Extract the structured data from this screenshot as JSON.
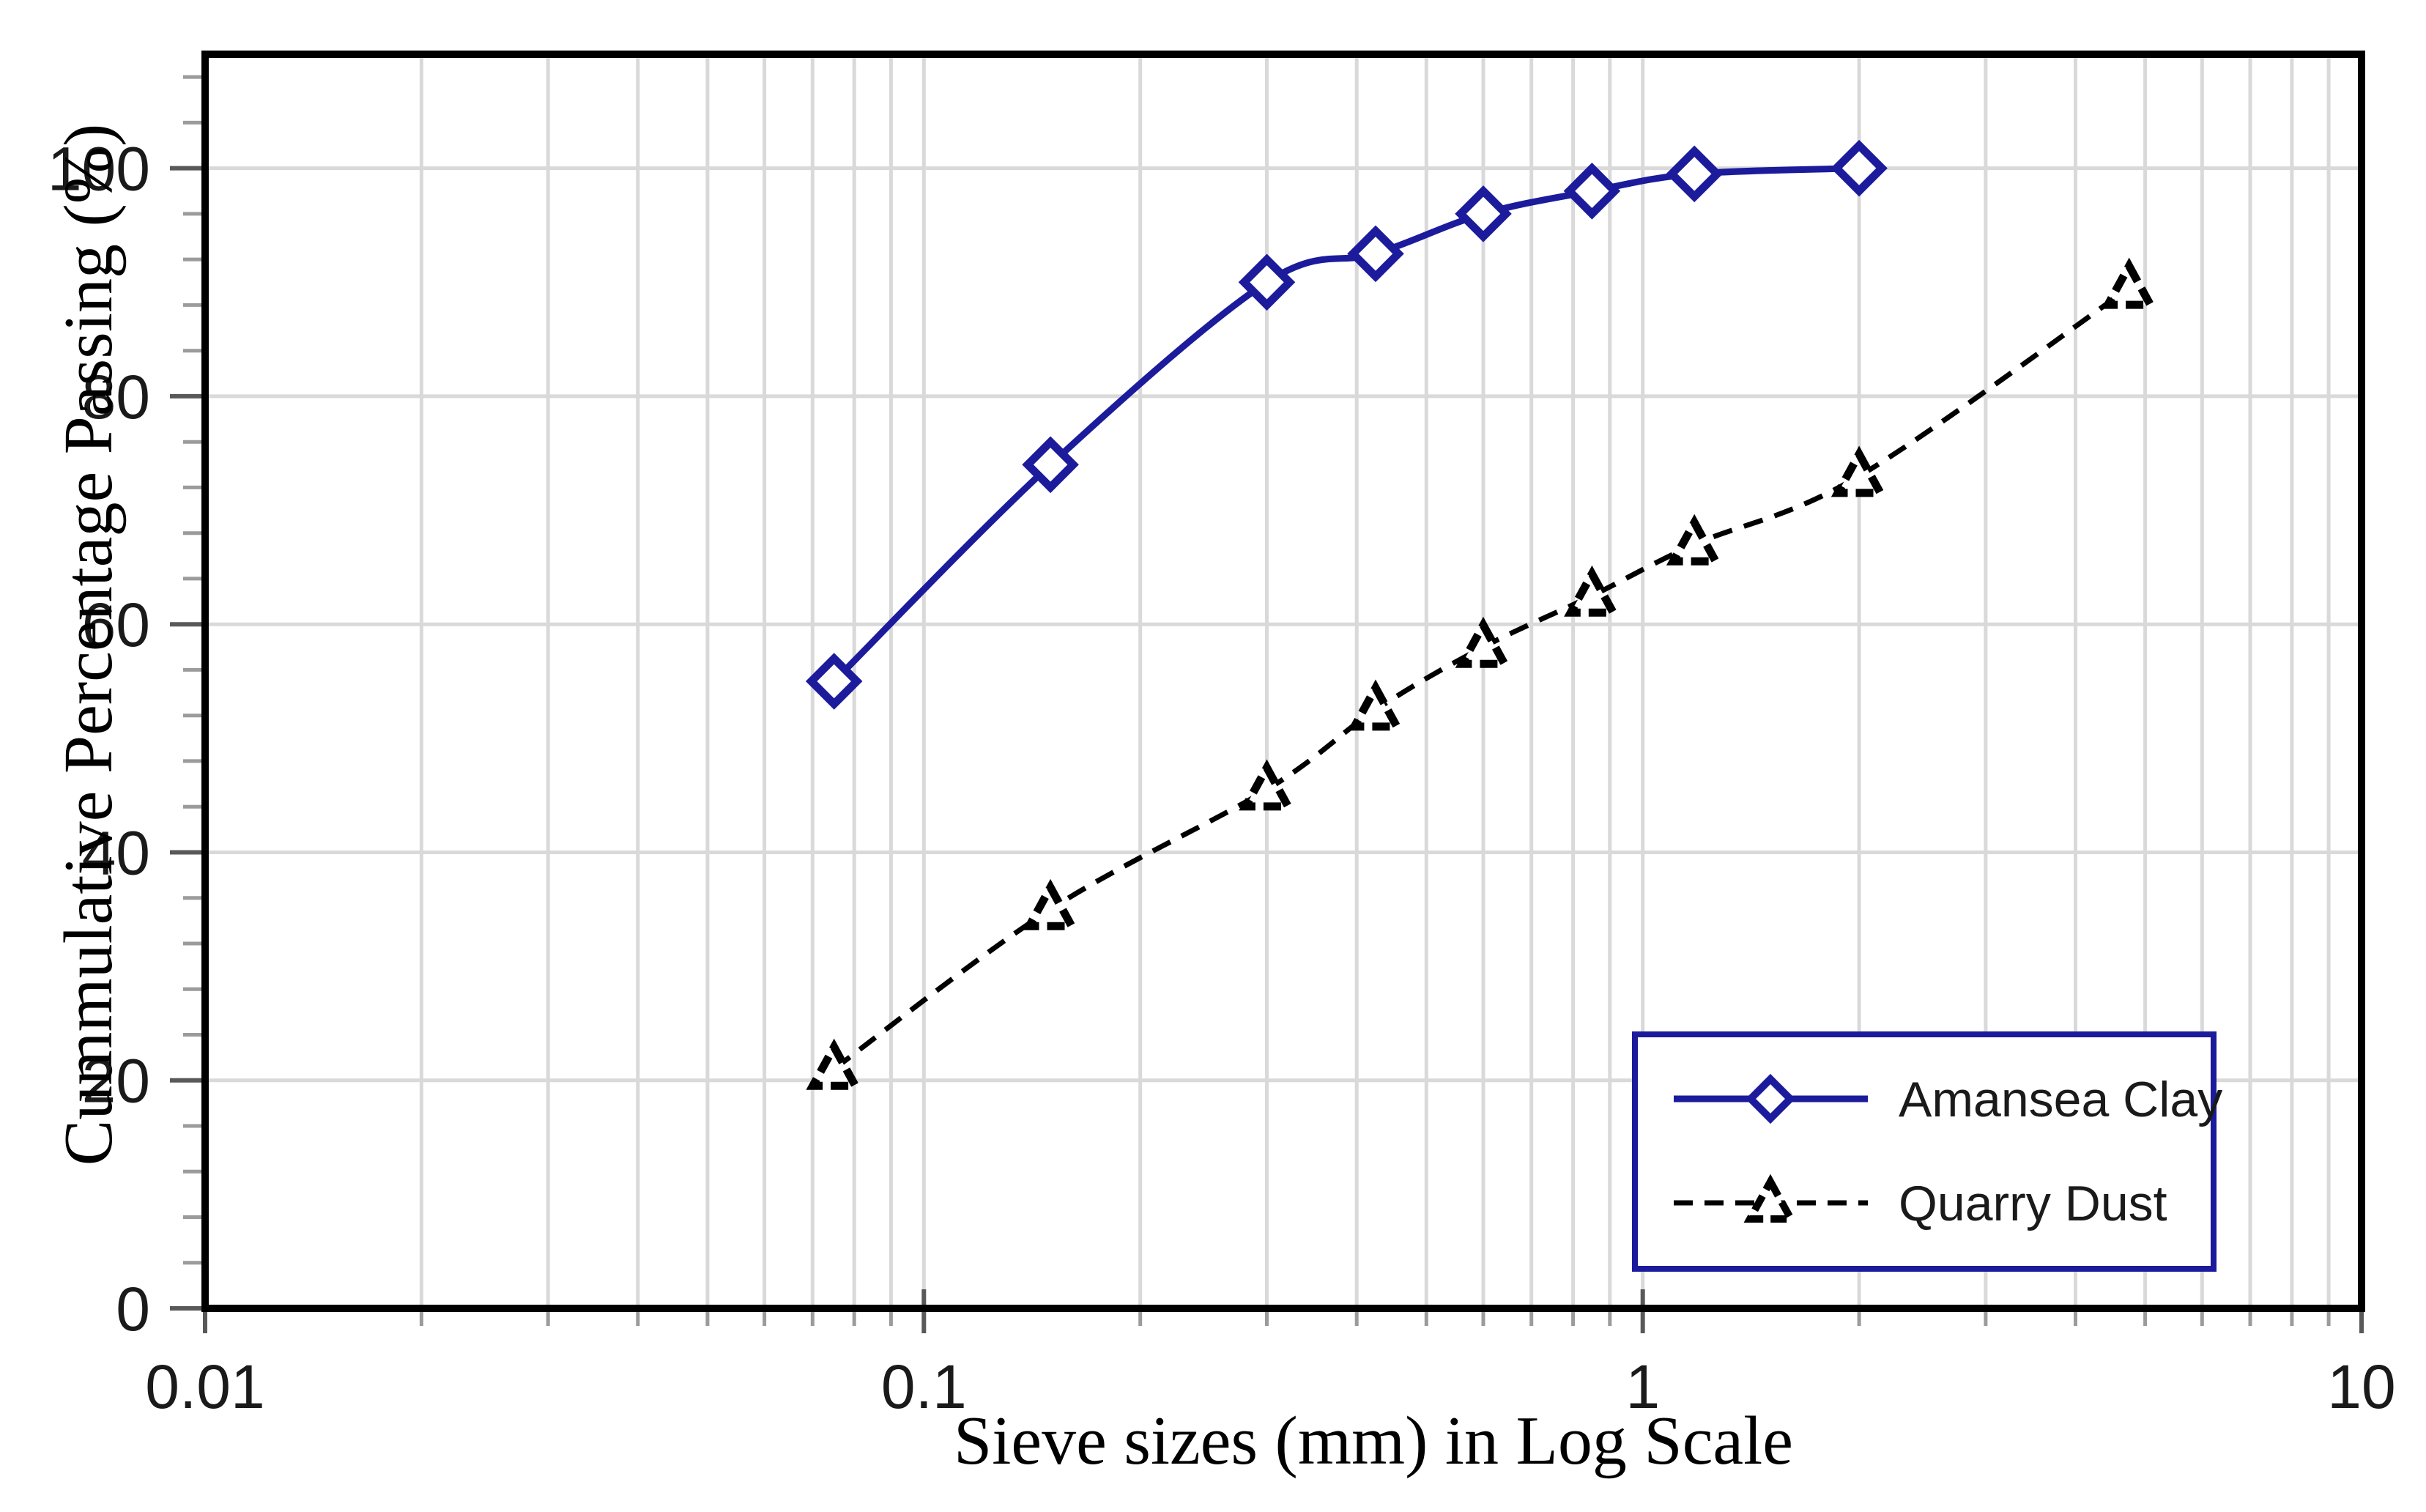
{
  "chart_data": {
    "type": "line",
    "x_scale": "log",
    "title": "",
    "xlabel": "Sieve sizes (mm) in Log Scale",
    "ylabel": "Cummulative Percentage Passing (%)",
    "xlim": [
      0.01,
      10
    ],
    "ylim": [
      0,
      110
    ],
    "x_tick_labels": [
      "0.01",
      "0.1",
      "1",
      "10"
    ],
    "x_tick_values": [
      0.01,
      0.1,
      1,
      10
    ],
    "y_tick_values": [
      0,
      20,
      40,
      60,
      80,
      100
    ],
    "y_major_unit": 20,
    "y_minor_unit": 4,
    "grid": "vertical log-minor gridlines + horizontal major gridlines, light gray",
    "legend_position": "inside bottom-right, boxed",
    "series": [
      {
        "name": "Amansea Clay",
        "color": "#1b1b9c",
        "line_style": "solid",
        "marker": "diamond-open",
        "x": [
          0.075,
          0.15,
          0.3,
          0.425,
          0.6,
          0.85,
          1.18,
          2.0
        ],
        "y": [
          55,
          74,
          90,
          92.5,
          96,
          98,
          99.5,
          100
        ]
      },
      {
        "name": "Quarry Dust",
        "color": "#000000",
        "line_style": "dashed",
        "marker": "triangle-open-dashed",
        "x": [
          0.075,
          0.15,
          0.3,
          0.425,
          0.6,
          0.85,
          1.18,
          2.0,
          4.75
        ],
        "y": [
          21,
          35,
          45.5,
          52.5,
          58,
          62.5,
          67,
          73,
          89.5
        ]
      }
    ]
  },
  "legend": {
    "items": [
      {
        "label": "Amansea Clay",
        "swatch": "navy solid line with open diamond marker"
      },
      {
        "label": "Quarry Dust",
        "swatch": "black dashed line with open triangle marker"
      }
    ]
  },
  "colors": {
    "navy": "#1b1b9c",
    "series2_black": "#000000",
    "grid": "#d9d9d9",
    "plot_border": "#000000",
    "tick_major": "#595959",
    "tick_minor": "#9b9b9b",
    "text": "#1a1a1a",
    "background": "#ffffff"
  }
}
